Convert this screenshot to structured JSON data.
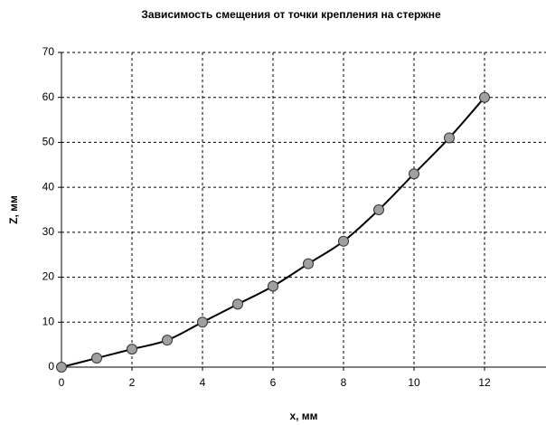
{
  "chart_data": {
    "type": "scatter",
    "title": "Зависимость смещения от точки крепления на стержне",
    "xlabel": "x, мм",
    "ylabel": "Z, мм",
    "x": [
      0,
      1,
      2,
      3,
      4,
      5,
      6,
      7,
      8,
      9,
      10,
      11,
      12
    ],
    "values": [
      0,
      2,
      4,
      6,
      10,
      14,
      18,
      23,
      28,
      35,
      43,
      51,
      60
    ],
    "marker_color": "#a0a0a0",
    "line_color": "#000000",
    "smooth_line": true,
    "xlim": [
      0,
      14
    ],
    "xticks": [
      0,
      2,
      4,
      6,
      8,
      10,
      12,
      14
    ],
    "ylim": [
      0,
      70
    ],
    "yticks": [
      0,
      10,
      20,
      30,
      40,
      50,
      60,
      70
    ],
    "grid": true
  }
}
